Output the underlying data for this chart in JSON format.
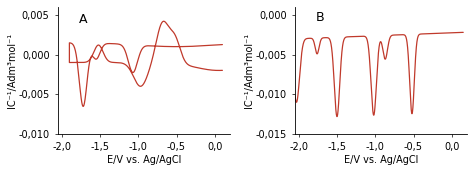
{
  "panel_A": {
    "label": "A",
    "xlabel": "E/V vs. Ag/AgCl",
    "ylabel": "IC⁻¹/Adm³mol⁻¹",
    "xlim": [
      -2.05,
      0.2
    ],
    "ylim": [
      -0.01,
      0.006
    ],
    "xticks": [
      -2.0,
      -1.5,
      -1.0,
      -0.5,
      0.0
    ],
    "yticks": [
      -0.01,
      -0.005,
      0.0,
      0.005
    ],
    "yticklabels": [
      "-0,010",
      "-0,005",
      "0,000",
      "0,005"
    ],
    "xticklabels": [
      "-2,0",
      "-1,5",
      "-1,0",
      "-0,5",
      "0,0"
    ],
    "line_color": "#c0392b",
    "linewidth": 0.9
  },
  "panel_B": {
    "label": "B",
    "xlabel": "E/V vs. Ag/AgCl",
    "ylabel": "IC⁻¹/Adm³mol⁻¹",
    "xlim": [
      -2.05,
      0.2
    ],
    "ylim": [
      -0.015,
      0.001
    ],
    "xticks": [
      -2.0,
      -1.5,
      -1.0,
      -0.5,
      0.0
    ],
    "yticks": [
      -0.015,
      -0.01,
      -0.005,
      0.0
    ],
    "yticklabels": [
      "-0,015",
      "-0,010",
      "-0,005",
      "0,000"
    ],
    "xticklabels": [
      "-2,0",
      "-1,5",
      "-1,0",
      "-0,5",
      "0,0"
    ],
    "line_color": "#c0392b",
    "linewidth": 0.9
  },
  "background_color": "#ffffff",
  "font_size": 7,
  "label_font_size": 7
}
